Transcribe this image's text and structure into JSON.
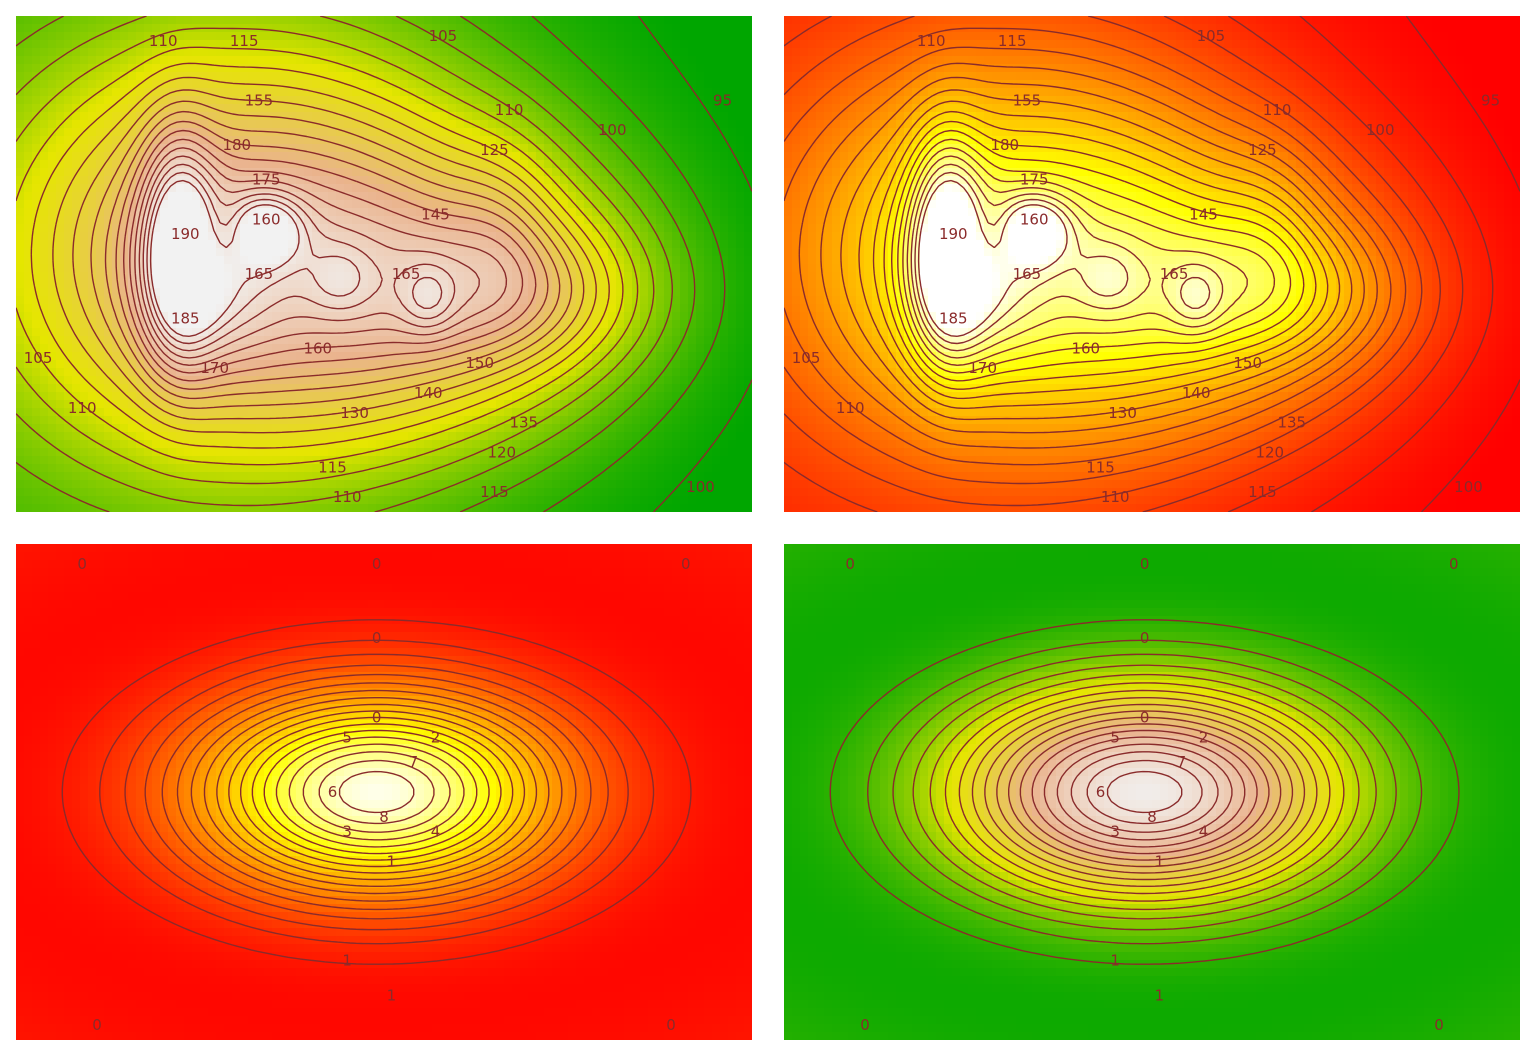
{
  "chart_data": [
    {
      "type": "heatmap",
      "subtype": "contour",
      "surface": "volcano",
      "colormap": "terrain",
      "colors": [
        "#00a600",
        "#e6e600",
        "#eab38d",
        "#f2f2f2"
      ],
      "z_range": [
        94,
        195
      ],
      "contour_levels": [
        95,
        100,
        105,
        110,
        115,
        120,
        125,
        130,
        135,
        140,
        145,
        150,
        155,
        160,
        165,
        170,
        175,
        180,
        185,
        190
      ],
      "contour_labels": [
        {
          "text": "110",
          "x": 0.2,
          "y": 0.05
        },
        {
          "text": "115",
          "x": 0.31,
          "y": 0.05
        },
        {
          "text": "105",
          "x": 0.58,
          "y": 0.04
        },
        {
          "text": "95",
          "x": 0.96,
          "y": 0.17
        },
        {
          "text": "110",
          "x": 0.67,
          "y": 0.19
        },
        {
          "text": "100",
          "x": 0.81,
          "y": 0.23
        },
        {
          "text": "155",
          "x": 0.33,
          "y": 0.17
        },
        {
          "text": "180",
          "x": 0.3,
          "y": 0.26
        },
        {
          "text": "125",
          "x": 0.65,
          "y": 0.27
        },
        {
          "text": "175",
          "x": 0.34,
          "y": 0.33
        },
        {
          "text": "160",
          "x": 0.34,
          "y": 0.41
        },
        {
          "text": "145",
          "x": 0.57,
          "y": 0.4
        },
        {
          "text": "190",
          "x": 0.23,
          "y": 0.44
        },
        {
          "text": "165",
          "x": 0.33,
          "y": 0.52
        },
        {
          "text": "165",
          "x": 0.53,
          "y": 0.52
        },
        {
          "text": "185",
          "x": 0.23,
          "y": 0.61
        },
        {
          "text": "160",
          "x": 0.41,
          "y": 0.67
        },
        {
          "text": "170",
          "x": 0.27,
          "y": 0.71
        },
        {
          "text": "150",
          "x": 0.63,
          "y": 0.7
        },
        {
          "text": "140",
          "x": 0.56,
          "y": 0.76
        },
        {
          "text": "130",
          "x": 0.46,
          "y": 0.8
        },
        {
          "text": "135",
          "x": 0.69,
          "y": 0.82
        },
        {
          "text": "105",
          "x": 0.03,
          "y": 0.69
        },
        {
          "text": "110",
          "x": 0.09,
          "y": 0.79
        },
        {
          "text": "120",
          "x": 0.66,
          "y": 0.88
        },
        {
          "text": "115",
          "x": 0.43,
          "y": 0.91
        },
        {
          "text": "115",
          "x": 0.65,
          "y": 0.96
        },
        {
          "text": "110",
          "x": 0.45,
          "y": 0.97
        },
        {
          "text": "100",
          "x": 0.93,
          "y": 0.95
        }
      ]
    },
    {
      "type": "heatmap",
      "subtype": "contour",
      "surface": "volcano",
      "colormap": "heat",
      "colors": [
        "#ff0000",
        "#ff8000",
        "#ffff00",
        "#ffffff"
      ],
      "z_range": [
        94,
        195
      ],
      "contour_levels": [
        95,
        100,
        105,
        110,
        115,
        120,
        125,
        130,
        135,
        140,
        145,
        150,
        155,
        160,
        165,
        170,
        175,
        180,
        185,
        190
      ],
      "contour_labels": [
        {
          "text": "110",
          "x": 0.2,
          "y": 0.05
        },
        {
          "text": "115",
          "x": 0.31,
          "y": 0.05
        },
        {
          "text": "105",
          "x": 0.58,
          "y": 0.04
        },
        {
          "text": "95",
          "x": 0.96,
          "y": 0.17
        },
        {
          "text": "110",
          "x": 0.67,
          "y": 0.19
        },
        {
          "text": "100",
          "x": 0.81,
          "y": 0.23
        },
        {
          "text": "155",
          "x": 0.33,
          "y": 0.17
        },
        {
          "text": "180",
          "x": 0.3,
          "y": 0.26
        },
        {
          "text": "125",
          "x": 0.65,
          "y": 0.27
        },
        {
          "text": "175",
          "x": 0.34,
          "y": 0.33
        },
        {
          "text": "160",
          "x": 0.34,
          "y": 0.41
        },
        {
          "text": "145",
          "x": 0.57,
          "y": 0.4
        },
        {
          "text": "190",
          "x": 0.23,
          "y": 0.44
        },
        {
          "text": "165",
          "x": 0.33,
          "y": 0.52
        },
        {
          "text": "165",
          "x": 0.53,
          "y": 0.52
        },
        {
          "text": "185",
          "x": 0.23,
          "y": 0.61
        },
        {
          "text": "160",
          "x": 0.41,
          "y": 0.67
        },
        {
          "text": "170",
          "x": 0.27,
          "y": 0.71
        },
        {
          "text": "150",
          "x": 0.63,
          "y": 0.7
        },
        {
          "text": "140",
          "x": 0.56,
          "y": 0.76
        },
        {
          "text": "130",
          "x": 0.46,
          "y": 0.8
        },
        {
          "text": "135",
          "x": 0.69,
          "y": 0.82
        },
        {
          "text": "105",
          "x": 0.03,
          "y": 0.69
        },
        {
          "text": "110",
          "x": 0.09,
          "y": 0.79
        },
        {
          "text": "120",
          "x": 0.66,
          "y": 0.88
        },
        {
          "text": "115",
          "x": 0.43,
          "y": 0.91
        },
        {
          "text": "115",
          "x": 0.65,
          "y": 0.96
        },
        {
          "text": "110",
          "x": 0.45,
          "y": 0.97
        },
        {
          "text": "100",
          "x": 0.93,
          "y": 0.95
        }
      ]
    },
    {
      "type": "heatmap",
      "subtype": "contour",
      "surface": "bump",
      "colormap": "heat",
      "colors": [
        "#ff0000",
        "#ff8000",
        "#ffff00",
        "#ffffff"
      ],
      "z_range": [
        -0.6,
        9.2
      ],
      "contour_levels": [
        -0.5,
        0,
        0.5,
        1,
        1.5,
        2,
        2.5,
        3,
        3.5,
        4,
        4.5,
        5,
        5.5,
        6,
        6.5,
        7,
        7.5,
        8,
        8.5
      ],
      "contour_labels": [
        {
          "text": "0",
          "x": 0.49,
          "y": 0.04
        },
        {
          "text": "0",
          "x": 0.09,
          "y": 0.04
        },
        {
          "text": "0",
          "x": 0.91,
          "y": 0.04
        },
        {
          "text": "0",
          "x": 0.49,
          "y": 0.19
        },
        {
          "text": "0",
          "x": 0.49,
          "y": 0.35
        },
        {
          "text": "5",
          "x": 0.45,
          "y": 0.39
        },
        {
          "text": "2",
          "x": 0.57,
          "y": 0.39
        },
        {
          "text": "7",
          "x": 0.54,
          "y": 0.44
        },
        {
          "text": "6",
          "x": 0.43,
          "y": 0.5
        },
        {
          "text": "8",
          "x": 0.5,
          "y": 0.55
        },
        {
          "text": "3",
          "x": 0.45,
          "y": 0.58
        },
        {
          "text": "4",
          "x": 0.57,
          "y": 0.58
        },
        {
          "text": "1",
          "x": 0.51,
          "y": 0.64
        },
        {
          "text": "1",
          "x": 0.45,
          "y": 0.84
        },
        {
          "text": "1",
          "x": 0.51,
          "y": 0.91
        },
        {
          "text": "0",
          "x": 0.11,
          "y": 0.97
        },
        {
          "text": "0",
          "x": 0.89,
          "y": 0.97
        }
      ]
    },
    {
      "type": "heatmap",
      "subtype": "contour",
      "surface": "bump",
      "colormap": "terrain",
      "colors": [
        "#00a600",
        "#e6e600",
        "#eab38d",
        "#f2f2f2"
      ],
      "z_range": [
        -0.6,
        9.2
      ],
      "contour_levels": [
        -0.5,
        0,
        0.5,
        1,
        1.5,
        2,
        2.5,
        3,
        3.5,
        4,
        4.5,
        5,
        5.5,
        6,
        6.5,
        7,
        7.5,
        8,
        8.5
      ],
      "contour_labels": [
        {
          "text": "0",
          "x": 0.49,
          "y": 0.04
        },
        {
          "text": "0",
          "x": 0.09,
          "y": 0.04
        },
        {
          "text": "0",
          "x": 0.91,
          "y": 0.04
        },
        {
          "text": "0",
          "x": 0.49,
          "y": 0.19
        },
        {
          "text": "0",
          "x": 0.49,
          "y": 0.35
        },
        {
          "text": "5",
          "x": 0.45,
          "y": 0.39
        },
        {
          "text": "2",
          "x": 0.57,
          "y": 0.39
        },
        {
          "text": "7",
          "x": 0.54,
          "y": 0.44
        },
        {
          "text": "6",
          "x": 0.43,
          "y": 0.5
        },
        {
          "text": "8",
          "x": 0.5,
          "y": 0.55
        },
        {
          "text": "3",
          "x": 0.45,
          "y": 0.58
        },
        {
          "text": "4",
          "x": 0.57,
          "y": 0.58
        },
        {
          "text": "1",
          "x": 0.51,
          "y": 0.64
        },
        {
          "text": "1",
          "x": 0.45,
          "y": 0.84
        },
        {
          "text": "1",
          "x": 0.51,
          "y": 0.91
        },
        {
          "text": "0",
          "x": 0.11,
          "y": 0.97
        },
        {
          "text": "0",
          "x": 0.89,
          "y": 0.97
        }
      ]
    }
  ],
  "contour_line_color": "#8a2b2b"
}
